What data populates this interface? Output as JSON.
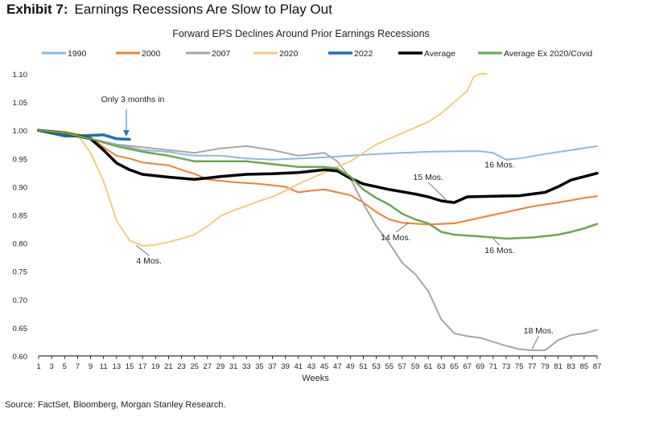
{
  "exhibit": {
    "label": "Exhibit 7:",
    "title": "Earnings Recessions Are Slow to Play Out"
  },
  "source": "Source: FactSet, Bloomberg, Morgan Stanley Research.",
  "chart_data": {
    "type": "line",
    "title": "Forward EPS Declines Around Prior Earnings Recessions",
    "xlabel": "Weeks",
    "ylabel": "",
    "xlim": [
      1,
      87
    ],
    "ylim": [
      0.6,
      1.1
    ],
    "yticks": [
      "0.60",
      "0.65",
      "0.70",
      "0.75",
      "0.80",
      "0.85",
      "0.90",
      "0.95",
      "1.00",
      "1.05",
      "1.10"
    ],
    "xticks": [
      1,
      3,
      5,
      7,
      9,
      11,
      13,
      15,
      17,
      19,
      21,
      23,
      25,
      27,
      29,
      31,
      33,
      35,
      37,
      39,
      41,
      43,
      45,
      47,
      49,
      51,
      53,
      55,
      57,
      59,
      61,
      63,
      65,
      67,
      69,
      71,
      73,
      75,
      77,
      79,
      81,
      83,
      85,
      87
    ],
    "legend_position": "top",
    "series": [
      {
        "name": "1990",
        "color": "#8fb8dd",
        "width": 2,
        "points": [
          [
            1,
            1.0
          ],
          [
            5,
            0.995
          ],
          [
            9,
            0.985
          ],
          [
            13,
            0.975
          ],
          [
            17,
            0.965
          ],
          [
            21,
            0.962
          ],
          [
            23,
            0.958
          ],
          [
            25,
            0.955
          ],
          [
            29,
            0.955
          ],
          [
            33,
            0.95
          ],
          [
            37,
            0.948
          ],
          [
            41,
            0.95
          ],
          [
            45,
            0.952
          ],
          [
            49,
            0.955
          ],
          [
            53,
            0.958
          ],
          [
            57,
            0.96
          ],
          [
            61,
            0.962
          ],
          [
            65,
            0.963
          ],
          [
            69,
            0.963
          ],
          [
            71,
            0.96
          ],
          [
            73,
            0.948
          ],
          [
            75,
            0.95
          ],
          [
            79,
            0.958
          ],
          [
            83,
            0.965
          ],
          [
            87,
            0.972
          ]
        ]
      },
      {
        "name": "2000",
        "color": "#f08030",
        "width": 2,
        "points": [
          [
            1,
            1.0
          ],
          [
            5,
            0.998
          ],
          [
            9,
            0.988
          ],
          [
            11,
            0.97
          ],
          [
            13,
            0.955
          ],
          [
            15,
            0.95
          ],
          [
            17,
            0.943
          ],
          [
            21,
            0.938
          ],
          [
            23,
            0.93
          ],
          [
            25,
            0.923
          ],
          [
            27,
            0.913
          ],
          [
            31,
            0.908
          ],
          [
            35,
            0.905
          ],
          [
            39,
            0.9
          ],
          [
            41,
            0.89
          ],
          [
            43,
            0.893
          ],
          [
            45,
            0.895
          ],
          [
            47,
            0.89
          ],
          [
            49,
            0.885
          ],
          [
            51,
            0.872
          ],
          [
            53,
            0.855
          ],
          [
            55,
            0.842
          ],
          [
            57,
            0.836
          ],
          [
            61,
            0.833
          ],
          [
            65,
            0.835
          ],
          [
            69,
            0.845
          ],
          [
            73,
            0.855
          ],
          [
            77,
            0.865
          ],
          [
            81,
            0.872
          ],
          [
            85,
            0.88
          ],
          [
            87,
            0.883
          ]
        ]
      },
      {
        "name": "2007",
        "color": "#a6a6a6",
        "width": 2,
        "points": [
          [
            1,
            1.0
          ],
          [
            5,
            0.995
          ],
          [
            9,
            0.985
          ],
          [
            13,
            0.975
          ],
          [
            17,
            0.97
          ],
          [
            21,
            0.965
          ],
          [
            25,
            0.96
          ],
          [
            29,
            0.968
          ],
          [
            33,
            0.972
          ],
          [
            37,
            0.965
          ],
          [
            41,
            0.955
          ],
          [
            45,
            0.96
          ],
          [
            47,
            0.945
          ],
          [
            49,
            0.915
          ],
          [
            51,
            0.87
          ],
          [
            53,
            0.83
          ],
          [
            55,
            0.8
          ],
          [
            57,
            0.765
          ],
          [
            59,
            0.745
          ],
          [
            61,
            0.715
          ],
          [
            63,
            0.665
          ],
          [
            65,
            0.64
          ],
          [
            67,
            0.635
          ],
          [
            69,
            0.632
          ],
          [
            71,
            0.625
          ],
          [
            73,
            0.618
          ],
          [
            75,
            0.612
          ],
          [
            77,
            0.61
          ],
          [
            79,
            0.61
          ],
          [
            81,
            0.628
          ],
          [
            83,
            0.637
          ],
          [
            85,
            0.64
          ],
          [
            87,
            0.646
          ]
        ]
      },
      {
        "name": "2020",
        "color": "#f2cc7a",
        "width": 2,
        "points": [
          [
            1,
            1.0
          ],
          [
            5,
            0.998
          ],
          [
            7,
            0.992
          ],
          [
            9,
            0.96
          ],
          [
            11,
            0.91
          ],
          [
            13,
            0.84
          ],
          [
            15,
            0.805
          ],
          [
            17,
            0.795
          ],
          [
            19,
            0.797
          ],
          [
            21,
            0.802
          ],
          [
            23,
            0.808
          ],
          [
            25,
            0.815
          ],
          [
            27,
            0.83
          ],
          [
            29,
            0.848
          ],
          [
            31,
            0.858
          ],
          [
            33,
            0.866
          ],
          [
            35,
            0.875
          ],
          [
            37,
            0.882
          ],
          [
            39,
            0.893
          ],
          [
            41,
            0.905
          ],
          [
            43,
            0.915
          ],
          [
            45,
            0.925
          ],
          [
            47,
            0.935
          ],
          [
            49,
            0.945
          ],
          [
            51,
            0.96
          ],
          [
            53,
            0.975
          ],
          [
            55,
            0.985
          ],
          [
            57,
            0.995
          ],
          [
            59,
            1.005
          ],
          [
            61,
            1.015
          ],
          [
            63,
            1.03
          ],
          [
            65,
            1.05
          ],
          [
            67,
            1.07
          ],
          [
            68,
            1.095
          ],
          [
            69,
            1.1
          ],
          [
            70,
            1.1
          ]
        ]
      },
      {
        "name": "2022",
        "color": "#1f6fb8",
        "width": 3.5,
        "points": [
          [
            1,
            1.0
          ],
          [
            3,
            0.995
          ],
          [
            5,
            0.99
          ],
          [
            7,
            0.99
          ],
          [
            9,
            0.991
          ],
          [
            11,
            0.992
          ],
          [
            13,
            0.985
          ],
          [
            15,
            0.984
          ]
        ]
      },
      {
        "name": "Average",
        "color": "#000000",
        "width": 3.5,
        "points": [
          [
            1,
            1.0
          ],
          [
            5,
            0.995
          ],
          [
            9,
            0.985
          ],
          [
            11,
            0.965
          ],
          [
            13,
            0.942
          ],
          [
            15,
            0.93
          ],
          [
            17,
            0.922
          ],
          [
            21,
            0.917
          ],
          [
            25,
            0.913
          ],
          [
            29,
            0.918
          ],
          [
            33,
            0.922
          ],
          [
            37,
            0.923
          ],
          [
            41,
            0.925
          ],
          [
            45,
            0.93
          ],
          [
            47,
            0.928
          ],
          [
            49,
            0.915
          ],
          [
            51,
            0.905
          ],
          [
            55,
            0.895
          ],
          [
            59,
            0.887
          ],
          [
            61,
            0.882
          ],
          [
            63,
            0.875
          ],
          [
            65,
            0.872
          ],
          [
            67,
            0.882
          ],
          [
            71,
            0.883
          ],
          [
            75,
            0.884
          ],
          [
            79,
            0.89
          ],
          [
            81,
            0.9
          ],
          [
            83,
            0.912
          ],
          [
            85,
            0.918
          ],
          [
            87,
            0.924
          ]
        ]
      },
      {
        "name": "Average Ex 2020/Covid",
        "color": "#6aa84f",
        "width": 2.5,
        "points": [
          [
            1,
            1.0
          ],
          [
            5,
            0.995
          ],
          [
            9,
            0.985
          ],
          [
            13,
            0.972
          ],
          [
            17,
            0.962
          ],
          [
            21,
            0.955
          ],
          [
            25,
            0.945
          ],
          [
            29,
            0.945
          ],
          [
            33,
            0.945
          ],
          [
            37,
            0.94
          ],
          [
            41,
            0.935
          ],
          [
            45,
            0.935
          ],
          [
            47,
            0.932
          ],
          [
            49,
            0.918
          ],
          [
            51,
            0.895
          ],
          [
            53,
            0.88
          ],
          [
            55,
            0.868
          ],
          [
            57,
            0.852
          ],
          [
            59,
            0.842
          ],
          [
            61,
            0.835
          ],
          [
            63,
            0.82
          ],
          [
            65,
            0.815
          ],
          [
            69,
            0.812
          ],
          [
            73,
            0.808
          ],
          [
            77,
            0.81
          ],
          [
            81,
            0.815
          ],
          [
            83,
            0.82
          ],
          [
            85,
            0.826
          ],
          [
            87,
            0.834
          ]
        ]
      }
    ],
    "annotations": [
      {
        "text": "Only 3 months in",
        "x": 15.5,
        "y": 1.05,
        "arrow_to": [
          14.5,
          0.986
        ]
      },
      {
        "text": "4 Mos.",
        "x": 18,
        "y": 0.764,
        "leader_to": [
          16,
          0.796
        ]
      },
      {
        "text": "15 Mos.",
        "x": 61,
        "y": 0.912,
        "leader_to": [
          64,
          0.874
        ]
      },
      {
        "text": "14 Mos.",
        "x": 56,
        "y": 0.805,
        "leader_to": [
          58,
          0.836
        ]
      },
      {
        "text": "16 Mos.",
        "x": 72,
        "y": 0.934,
        "leader_to": [
          72,
          0.95
        ]
      },
      {
        "text": "16 Mos.",
        "x": 72,
        "y": 0.782,
        "leader_to": [
          71,
          0.808
        ]
      },
      {
        "text": "18 Mos.",
        "x": 78,
        "y": 0.64,
        "leader_to": [
          77,
          0.612
        ]
      }
    ]
  }
}
